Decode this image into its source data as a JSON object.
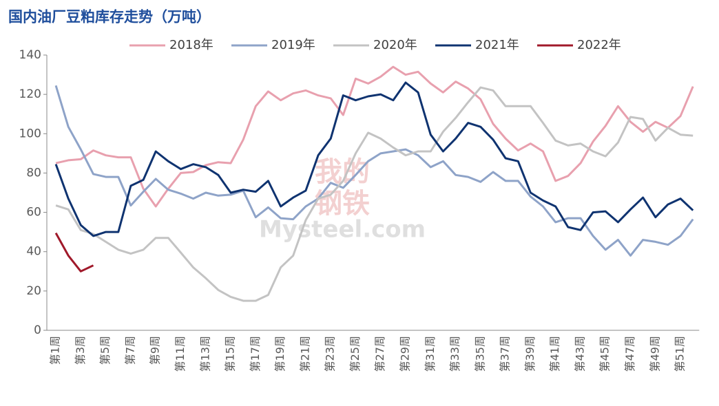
{
  "chart_data": {
    "type": "line",
    "title": "国内油厂豆粕库存走势（万吨）",
    "watermark": [
      "我的",
      "钢铁",
      "Mysteel.com"
    ],
    "categories": [
      "第1周",
      null,
      "第3周",
      null,
      "第5周",
      null,
      "第7周",
      null,
      "第9周",
      null,
      "第11周",
      null,
      "第13周",
      null,
      "第15周",
      null,
      "第17周",
      null,
      "第19周",
      null,
      "第21周",
      null,
      "第23周",
      null,
      "第25周",
      null,
      "第27周",
      null,
      "第29周",
      null,
      "第31周",
      null,
      "第33周",
      null,
      "第35周",
      null,
      "第37周",
      null,
      "第39周",
      null,
      "第41周",
      null,
      "第43周",
      null,
      "第45周",
      null,
      "第47周",
      null,
      "第49周",
      null,
      "第51周",
      null
    ],
    "ylim": [
      0,
      140
    ],
    "yticks": [
      0,
      20,
      40,
      60,
      80,
      100,
      120,
      140
    ],
    "grid": false,
    "legend": "top",
    "series": [
      {
        "name": "2018年",
        "color": "#e8a0ae",
        "values": [
          85,
          86.5,
          87,
          91.5,
          89,
          88,
          88,
          72,
          63,
          72,
          80,
          80.5,
          84,
          85.5,
          85,
          97,
          114,
          121.5,
          117,
          120.5,
          122,
          119.5,
          118,
          109.5,
          128,
          125.5,
          129,
          134,
          130,
          131.5,
          125.5,
          121,
          126.5,
          123,
          117.5,
          105,
          97.5,
          91.5,
          95,
          91,
          76,
          78.5,
          85,
          96,
          104,
          114,
          106,
          101,
          106,
          103,
          109,
          124
        ]
      },
      {
        "name": "2019年",
        "color": "#8ea3c8",
        "values": [
          124.5,
          103.5,
          92,
          79.5,
          78,
          78,
          63.5,
          70.5,
          77,
          71.5,
          69.5,
          67,
          70,
          68.5,
          69,
          71,
          57.5,
          62.5,
          57,
          56.5,
          63,
          67,
          75,
          72.5,
          79,
          86,
          90,
          91,
          92,
          89,
          83,
          86,
          79,
          78,
          75.5,
          80.5,
          76,
          76,
          68,
          63,
          55,
          57,
          57,
          48,
          41,
          46,
          38,
          46,
          45,
          43.5,
          48,
          56.5
        ]
      },
      {
        "name": "2020年",
        "color": "#c3c3c3",
        "values": [
          63.5,
          61.5,
          51,
          49,
          45,
          41,
          39,
          41,
          47,
          47,
          39.5,
          32,
          26.5,
          20.5,
          17,
          15,
          15,
          18,
          32,
          38,
          56,
          67,
          69,
          76,
          90,
          100.5,
          97.5,
          93,
          89,
          91,
          91,
          101,
          108,
          116,
          123.5,
          122,
          114,
          114,
          114,
          105.5,
          96.5,
          94,
          95,
          91,
          88.5,
          95.5,
          108.5,
          107.5,
          96.5,
          103,
          99.5,
          99
        ]
      },
      {
        "name": "2021年",
        "color": "#0f3370",
        "values": [
          84.5,
          67,
          53.5,
          48,
          50,
          50,
          73.5,
          76.5,
          91,
          86,
          82,
          84.5,
          83,
          79,
          70,
          71.5,
          70.5,
          76,
          63,
          67.5,
          71,
          89,
          97.5,
          119.5,
          117,
          119,
          120,
          117,
          126,
          121,
          99.5,
          91,
          97.5,
          105.5,
          103.5,
          97,
          87.5,
          86,
          70,
          66,
          63,
          52.5,
          51,
          60,
          60.5,
          55,
          61.5,
          67.5,
          57.5,
          64,
          67,
          61
        ]
      },
      {
        "name": "2022年",
        "color": "#a0192a",
        "values": [
          49.5,
          38,
          30,
          33,
          null,
          null,
          null,
          null,
          null,
          null,
          null,
          null,
          null,
          null,
          null,
          null,
          null,
          null,
          null,
          null,
          null,
          null,
          null,
          null,
          null,
          null,
          null,
          null,
          null,
          null,
          null,
          null,
          null,
          null,
          null,
          null,
          null,
          null,
          null,
          null,
          null,
          null,
          null,
          null,
          null,
          null,
          null,
          null,
          null,
          null,
          null,
          null
        ]
      }
    ]
  }
}
